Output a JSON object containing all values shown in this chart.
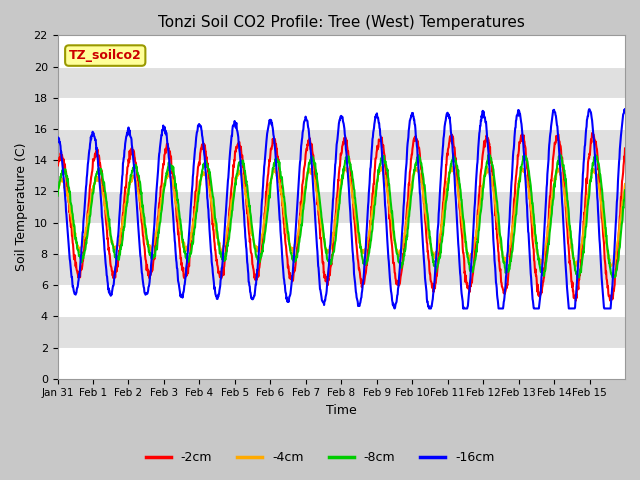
{
  "title": "Tonzi Soil CO2 Profile: Tree (West) Temperatures",
  "xlabel": "Time",
  "ylabel": "Soil Temperature (C)",
  "ylim": [
    0,
    22
  ],
  "series_labels": [
    "-2cm",
    "-4cm",
    "-8cm",
    "-16cm"
  ],
  "series_colors": [
    "#ff0000",
    "#ffaa00",
    "#00cc00",
    "#0000ff"
  ],
  "legend_label": "TZ_soilco2",
  "legend_bg": "#ffff99",
  "legend_text_color": "#cc0000",
  "xtick_labels": [
    "Jan 31",
    "Feb 1",
    "Feb 2",
    "Feb 3",
    "Feb 4",
    "Feb 5",
    "Feb 6",
    "Feb 7",
    "Feb 8",
    "Feb 9",
    "Feb 10",
    "Feb 11",
    "Feb 12",
    "Feb 13",
    "Feb 14",
    "Feb 15"
  ],
  "background_color": "#e0e0e0",
  "grid_color": "#ffffff",
  "line_width": 1.5,
  "n_days": 16
}
